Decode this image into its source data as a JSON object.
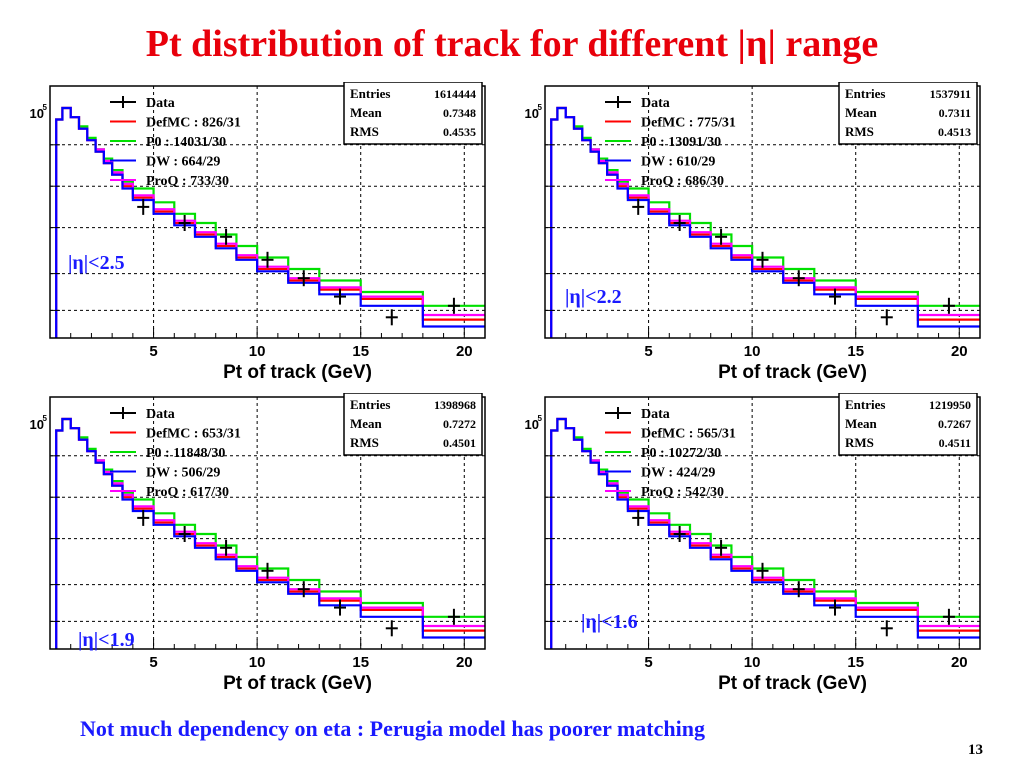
{
  "slide": {
    "title": "Pt distribution of track for different |η| range",
    "note": "Not much dependency on eta : Perugia model has poorer matching",
    "page_number": "13"
  },
  "colors": {
    "Data": "#000000",
    "DefMC": "#ff0000",
    "P0": "#00e000",
    "DW": "#0000ff",
    "ProQ": "#ff00ff",
    "title": "#e8000b",
    "eta_label": "#1a1aff"
  },
  "chart_data": [
    {
      "type": "line",
      "eta_label": "|η|<2.5",
      "xlabel": "Pt of track (GeV)",
      "x_ticks": [
        "5",
        "10",
        "15",
        "20"
      ],
      "y_tick_label": "10",
      "y_tick_exp": "5",
      "xlim": [
        0,
        21
      ],
      "ylim": [
        0,
        100
      ],
      "stats": {
        "entries_label": "Entries",
        "entries": "1614444",
        "mean_label": "Mean",
        "mean": "0.7348",
        "rms_label": "RMS",
        "rms": "0.4535"
      },
      "legend": [
        {
          "key": "Data",
          "label": "Data"
        },
        {
          "key": "DefMC",
          "label": "DefMC : 826/31"
        },
        {
          "key": "P0",
          "label": "P0 : 14031/30"
        },
        {
          "key": "DW",
          "label": "DW : 664/29"
        },
        {
          "key": "ProQ",
          "label": "ProQ : 733/30"
        }
      ],
      "bin_edges": [
        0.3,
        0.6,
        1.0,
        1.4,
        1.8,
        2.2,
        2.6,
        3.0,
        3.5,
        4.0,
        5.0,
        6.0,
        7.0,
        8.0,
        9.0,
        10.0,
        11.5,
        13.0,
        15.0,
        18.0,
        21.0
      ],
      "series": [
        {
          "name": "DefMC",
          "values": [
            95,
            100,
            96,
            91,
            86,
            81,
            76,
            71,
            66,
            61,
            55,
            50,
            45,
            40,
            35,
            30,
            25,
            21,
            17,
            8
          ]
        },
        {
          "name": "P0",
          "values": [
            95,
            100,
            96,
            92,
            87,
            82,
            78,
            73,
            68,
            65,
            59,
            54,
            50,
            45,
            40,
            35,
            30,
            25,
            20,
            14
          ]
        },
        {
          "name": "DW",
          "values": [
            95,
            100,
            96,
            91,
            86,
            81,
            76,
            71,
            65,
            60,
            54,
            49,
            44,
            39,
            34,
            29,
            24,
            19,
            14,
            5
          ]
        },
        {
          "name": "ProQ",
          "values": [
            95,
            100,
            96,
            91,
            86,
            82,
            77,
            72,
            67,
            62,
            56,
            51,
            46,
            41,
            36,
            31,
            26,
            22,
            18,
            10
          ]
        }
      ],
      "data_points": {
        "x": [
          4.5,
          6.5,
          8.5,
          10.5,
          12.25,
          14.0,
          16.5,
          19.5
        ],
        "y": [
          57,
          50,
          44,
          34,
          26,
          18,
          9,
          14
        ]
      }
    },
    {
      "type": "line",
      "eta_label": "|η|<2.2",
      "xlabel": "Pt of track (GeV)",
      "x_ticks": [
        "5",
        "10",
        "15",
        "20"
      ],
      "y_tick_label": "10",
      "y_tick_exp": "5",
      "xlim": [
        0,
        21
      ],
      "ylim": [
        0,
        100
      ],
      "stats": {
        "entries_label": "Entries",
        "entries": "1537911",
        "mean_label": "Mean",
        "mean": "0.7311",
        "rms_label": "RMS",
        "rms": "0.4513"
      },
      "legend": [
        {
          "key": "Data",
          "label": "Data"
        },
        {
          "key": "DefMC",
          "label": "DefMC : 775/31"
        },
        {
          "key": "P0",
          "label": "P0 : 13091/30"
        },
        {
          "key": "DW",
          "label": "DW : 610/29"
        },
        {
          "key": "ProQ",
          "label": "ProQ : 686/30"
        }
      ],
      "bin_edges": [
        0.3,
        0.6,
        1.0,
        1.4,
        1.8,
        2.2,
        2.6,
        3.0,
        3.5,
        4.0,
        5.0,
        6.0,
        7.0,
        8.0,
        9.0,
        10.0,
        11.5,
        13.0,
        15.0,
        18.0,
        21.0
      ],
      "series": [
        {
          "name": "DefMC",
          "values": [
            95,
            100,
            96,
            91,
            86,
            81,
            76,
            71,
            66,
            61,
            55,
            50,
            45,
            40,
            35,
            30,
            25,
            21,
            17,
            8
          ]
        },
        {
          "name": "P0",
          "values": [
            95,
            100,
            96,
            92,
            87,
            82,
            78,
            73,
            68,
            65,
            59,
            54,
            50,
            45,
            40,
            35,
            30,
            25,
            20,
            14
          ]
        },
        {
          "name": "DW",
          "values": [
            95,
            100,
            96,
            91,
            86,
            81,
            76,
            71,
            65,
            60,
            54,
            49,
            44,
            39,
            34,
            29,
            24,
            19,
            14,
            5
          ]
        },
        {
          "name": "ProQ",
          "values": [
            95,
            100,
            96,
            91,
            86,
            82,
            77,
            72,
            67,
            62,
            56,
            51,
            46,
            41,
            36,
            31,
            26,
            22,
            18,
            10
          ]
        }
      ],
      "data_points": {
        "x": [
          4.5,
          6.5,
          8.5,
          10.5,
          12.25,
          14.0,
          16.5,
          19.5
        ],
        "y": [
          57,
          50,
          44,
          34,
          26,
          18,
          9,
          14
        ]
      }
    },
    {
      "type": "line",
      "eta_label": "|η|<1.9",
      "xlabel": "Pt of track (GeV)",
      "x_ticks": [
        "5",
        "10",
        "15",
        "20"
      ],
      "y_tick_label": "10",
      "y_tick_exp": "5",
      "xlim": [
        0,
        21
      ],
      "ylim": [
        0,
        100
      ],
      "stats": {
        "entries_label": "Entries",
        "entries": "1398968",
        "mean_label": "Mean",
        "mean": "0.7272",
        "rms_label": "RMS",
        "rms": "0.4501"
      },
      "legend": [
        {
          "key": "Data",
          "label": "Data"
        },
        {
          "key": "DefMC",
          "label": "DefMC : 653/31"
        },
        {
          "key": "P0",
          "label": "P0 : 11848/30"
        },
        {
          "key": "DW",
          "label": "DW : 506/29"
        },
        {
          "key": "ProQ",
          "label": "ProQ : 617/30"
        }
      ],
      "bin_edges": [
        0.3,
        0.6,
        1.0,
        1.4,
        1.8,
        2.2,
        2.6,
        3.0,
        3.5,
        4.0,
        5.0,
        6.0,
        7.0,
        8.0,
        9.0,
        10.0,
        11.5,
        13.0,
        15.0,
        18.0,
        21.0
      ],
      "series": [
        {
          "name": "DefMC",
          "values": [
            95,
            100,
            96,
            91,
            86,
            81,
            76,
            71,
            66,
            61,
            55,
            50,
            45,
            40,
            35,
            30,
            25,
            21,
            17,
            8
          ]
        },
        {
          "name": "P0",
          "values": [
            95,
            100,
            96,
            92,
            87,
            82,
            78,
            73,
            68,
            65,
            59,
            54,
            50,
            45,
            40,
            35,
            30,
            25,
            20,
            14
          ]
        },
        {
          "name": "DW",
          "values": [
            95,
            100,
            96,
            91,
            86,
            81,
            76,
            71,
            65,
            60,
            54,
            49,
            44,
            39,
            34,
            29,
            24,
            19,
            14,
            5
          ]
        },
        {
          "name": "ProQ",
          "values": [
            95,
            100,
            96,
            91,
            86,
            82,
            77,
            72,
            67,
            62,
            56,
            51,
            46,
            41,
            36,
            31,
            26,
            22,
            18,
            10
          ]
        }
      ],
      "data_points": {
        "x": [
          4.5,
          6.5,
          8.5,
          10.5,
          12.25,
          14.0,
          16.5,
          19.5
        ],
        "y": [
          57,
          50,
          44,
          34,
          26,
          18,
          9,
          14
        ]
      }
    },
    {
      "type": "line",
      "eta_label": "|η|<1.6",
      "xlabel": "Pt of track (GeV)",
      "x_ticks": [
        "5",
        "10",
        "15",
        "20"
      ],
      "y_tick_label": "10",
      "y_tick_exp": "5",
      "xlim": [
        0,
        21
      ],
      "ylim": [
        0,
        100
      ],
      "stats": {
        "entries_label": "Entries",
        "entries": "1219950",
        "mean_label": "Mean",
        "mean": "0.7267",
        "rms_label": "RMS",
        "rms": "0.4511"
      },
      "legend": [
        {
          "key": "Data",
          "label": "Data"
        },
        {
          "key": "DefMC",
          "label": "DefMC : 565/31"
        },
        {
          "key": "P0",
          "label": "P0 : 10272/30"
        },
        {
          "key": "DW",
          "label": "DW : 424/29"
        },
        {
          "key": "ProQ",
          "label": "ProQ : 542/30"
        }
      ],
      "bin_edges": [
        0.3,
        0.6,
        1.0,
        1.4,
        1.8,
        2.2,
        2.6,
        3.0,
        3.5,
        4.0,
        5.0,
        6.0,
        7.0,
        8.0,
        9.0,
        10.0,
        11.5,
        13.0,
        15.0,
        18.0,
        21.0
      ],
      "series": [
        {
          "name": "DefMC",
          "values": [
            95,
            100,
            96,
            91,
            86,
            81,
            76,
            71,
            66,
            61,
            55,
            50,
            45,
            40,
            35,
            30,
            25,
            21,
            17,
            8
          ]
        },
        {
          "name": "P0",
          "values": [
            95,
            100,
            96,
            92,
            87,
            82,
            78,
            73,
            68,
            65,
            59,
            54,
            50,
            45,
            40,
            35,
            30,
            25,
            20,
            14
          ]
        },
        {
          "name": "DW",
          "values": [
            95,
            100,
            96,
            91,
            86,
            81,
            76,
            71,
            65,
            60,
            54,
            49,
            44,
            39,
            34,
            29,
            24,
            19,
            14,
            5
          ]
        },
        {
          "name": "ProQ",
          "values": [
            95,
            100,
            96,
            91,
            86,
            82,
            77,
            72,
            67,
            62,
            56,
            51,
            46,
            41,
            36,
            31,
            26,
            22,
            18,
            10
          ]
        }
      ],
      "data_points": {
        "x": [
          4.5,
          6.5,
          8.5,
          10.5,
          12.25,
          14.0,
          16.5,
          19.5
        ],
        "y": [
          57,
          50,
          44,
          34,
          26,
          18,
          9,
          14
        ]
      }
    }
  ]
}
